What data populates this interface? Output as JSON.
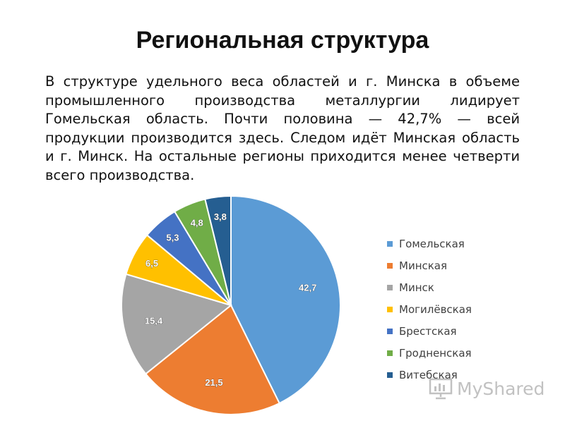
{
  "slide": {
    "title": "Региональная структура",
    "paragraph": "В структуре удельного веса областей и г. Минска в объеме промышленного производства металлургии лидирует Гомельская область. Почти половина — 42,7% — всей продукции производится здесь. Следом идёт Минская область и г. Минск. На остальные регионы приходится менее четверти всего производства."
  },
  "watermark": {
    "text": "MyShared",
    "icon": "presentation-screen-icon"
  },
  "chart_data": {
    "type": "pie",
    "title": "",
    "legend_position": "right",
    "slices": [
      {
        "name": "Гомельская",
        "value": 42.7,
        "label": "42,7",
        "color": "#5b9bd5"
      },
      {
        "name": "Минская",
        "value": 21.5,
        "label": "21,5",
        "color": "#ed7d31"
      },
      {
        "name": "Минск",
        "value": 15.4,
        "label": "15,4",
        "color": "#a5a5a5"
      },
      {
        "name": "Могилёвская",
        "value": 6.5,
        "label": "6,5",
        "color": "#ffc000"
      },
      {
        "name": "Брестская",
        "value": 5.3,
        "label": "5,3",
        "color": "#4472c4"
      },
      {
        "name": "Гродненская",
        "value": 4.8,
        "label": "4,8",
        "color": "#70ad47"
      },
      {
        "name": "Витебская",
        "value": 3.8,
        "label": "3,8",
        "color": "#255e91"
      }
    ]
  }
}
